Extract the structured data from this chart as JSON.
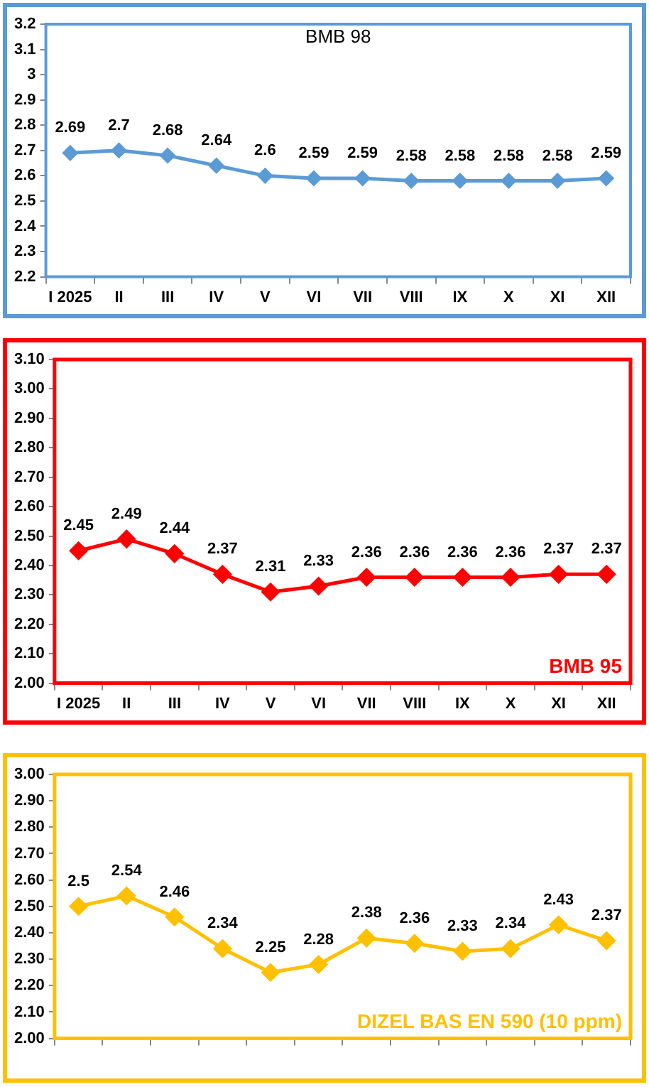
{
  "chart_data": [
    {
      "type": "line",
      "title": "BMB 98",
      "categories": [
        "I 2025",
        "II",
        "III",
        "IV",
        "V",
        "VI",
        "VII",
        "VIII",
        "IX",
        "X",
        "XI",
        "XII"
      ],
      "series": [
        {
          "color": "#5b9bd5",
          "values": [
            2.69,
            2.7,
            2.68,
            2.64,
            2.6,
            2.59,
            2.59,
            2.58,
            2.58,
            2.58,
            2.58,
            2.59
          ]
        }
      ],
      "ylim": [
        2.2,
        3.2
      ],
      "yticks": [
        2.2,
        2.3,
        2.4,
        2.5,
        2.6,
        2.7,
        2.8,
        2.9,
        3,
        3.1,
        3.2
      ],
      "grid": false,
      "legend": false,
      "marker": "diamond",
      "data_labels": true
    },
    {
      "type": "line",
      "title": "BMB 95",
      "categories": [
        "I 2025",
        "II",
        "III",
        "IV",
        "V",
        "VI",
        "VII",
        "VIII",
        "IX",
        "X",
        "XI",
        "XII"
      ],
      "series": [
        {
          "color": "#ff0000",
          "values": [
            2.45,
            2.49,
            2.44,
            2.37,
            2.31,
            2.33,
            2.36,
            2.36,
            2.36,
            2.36,
            2.37,
            2.37
          ]
        }
      ],
      "ylim": [
        2.0,
        3.1
      ],
      "yticks": [
        {
          "value": 2.0,
          "label": "2.00"
        },
        {
          "value": 2.1,
          "label": "2.10"
        },
        {
          "value": 2.2,
          "label": "2.20"
        },
        {
          "value": 2.3,
          "label": "2.30"
        },
        {
          "value": 2.4,
          "label": "2.40"
        },
        {
          "value": 2.5,
          "label": "2.50"
        },
        {
          "value": 2.6,
          "label": "2.60"
        },
        {
          "value": 2.7,
          "label": "2.70"
        },
        {
          "value": 2.8,
          "label": "2.80"
        },
        {
          "value": 2.9,
          "label": "2.90"
        },
        {
          "value": 3.0,
          "label": "3.00"
        },
        {
          "value": 3.1,
          "label": "3.10"
        }
      ],
      "grid": false,
      "legend": false,
      "marker": "diamond",
      "data_labels": true
    },
    {
      "type": "line",
      "title": "DIZEL BAS EN 590 (10 ppm)",
      "categories": [
        null,
        null,
        null,
        null,
        null,
        null,
        null,
        null,
        null,
        null,
        null,
        null
      ],
      "series": [
        {
          "color": "#ffc000",
          "values": [
            2.5,
            2.54,
            2.46,
            2.34,
            2.25,
            2.28,
            2.38,
            2.36,
            2.33,
            2.34,
            2.43,
            2.37
          ]
        }
      ],
      "ylim": [
        2.0,
        3.0
      ],
      "yticks": [
        {
          "value": 2.0,
          "label": "2.00"
        },
        {
          "value": 2.1,
          "label": "2.10"
        },
        {
          "value": 2.2,
          "label": "2.20"
        },
        {
          "value": 2.3,
          "label": "2.30"
        },
        {
          "value": 2.4,
          "label": "2.40"
        },
        {
          "value": 2.5,
          "label": "2.50"
        },
        {
          "value": 2.6,
          "label": "2.60"
        },
        {
          "value": 2.7,
          "label": "2.70"
        },
        {
          "value": 2.8,
          "label": "2.80"
        },
        {
          "value": 2.9,
          "label": "2.90"
        },
        {
          "value": 3.0,
          "label": "3.00"
        }
      ],
      "grid": false,
      "legend": false,
      "marker": "diamond",
      "data_labels": true
    }
  ]
}
